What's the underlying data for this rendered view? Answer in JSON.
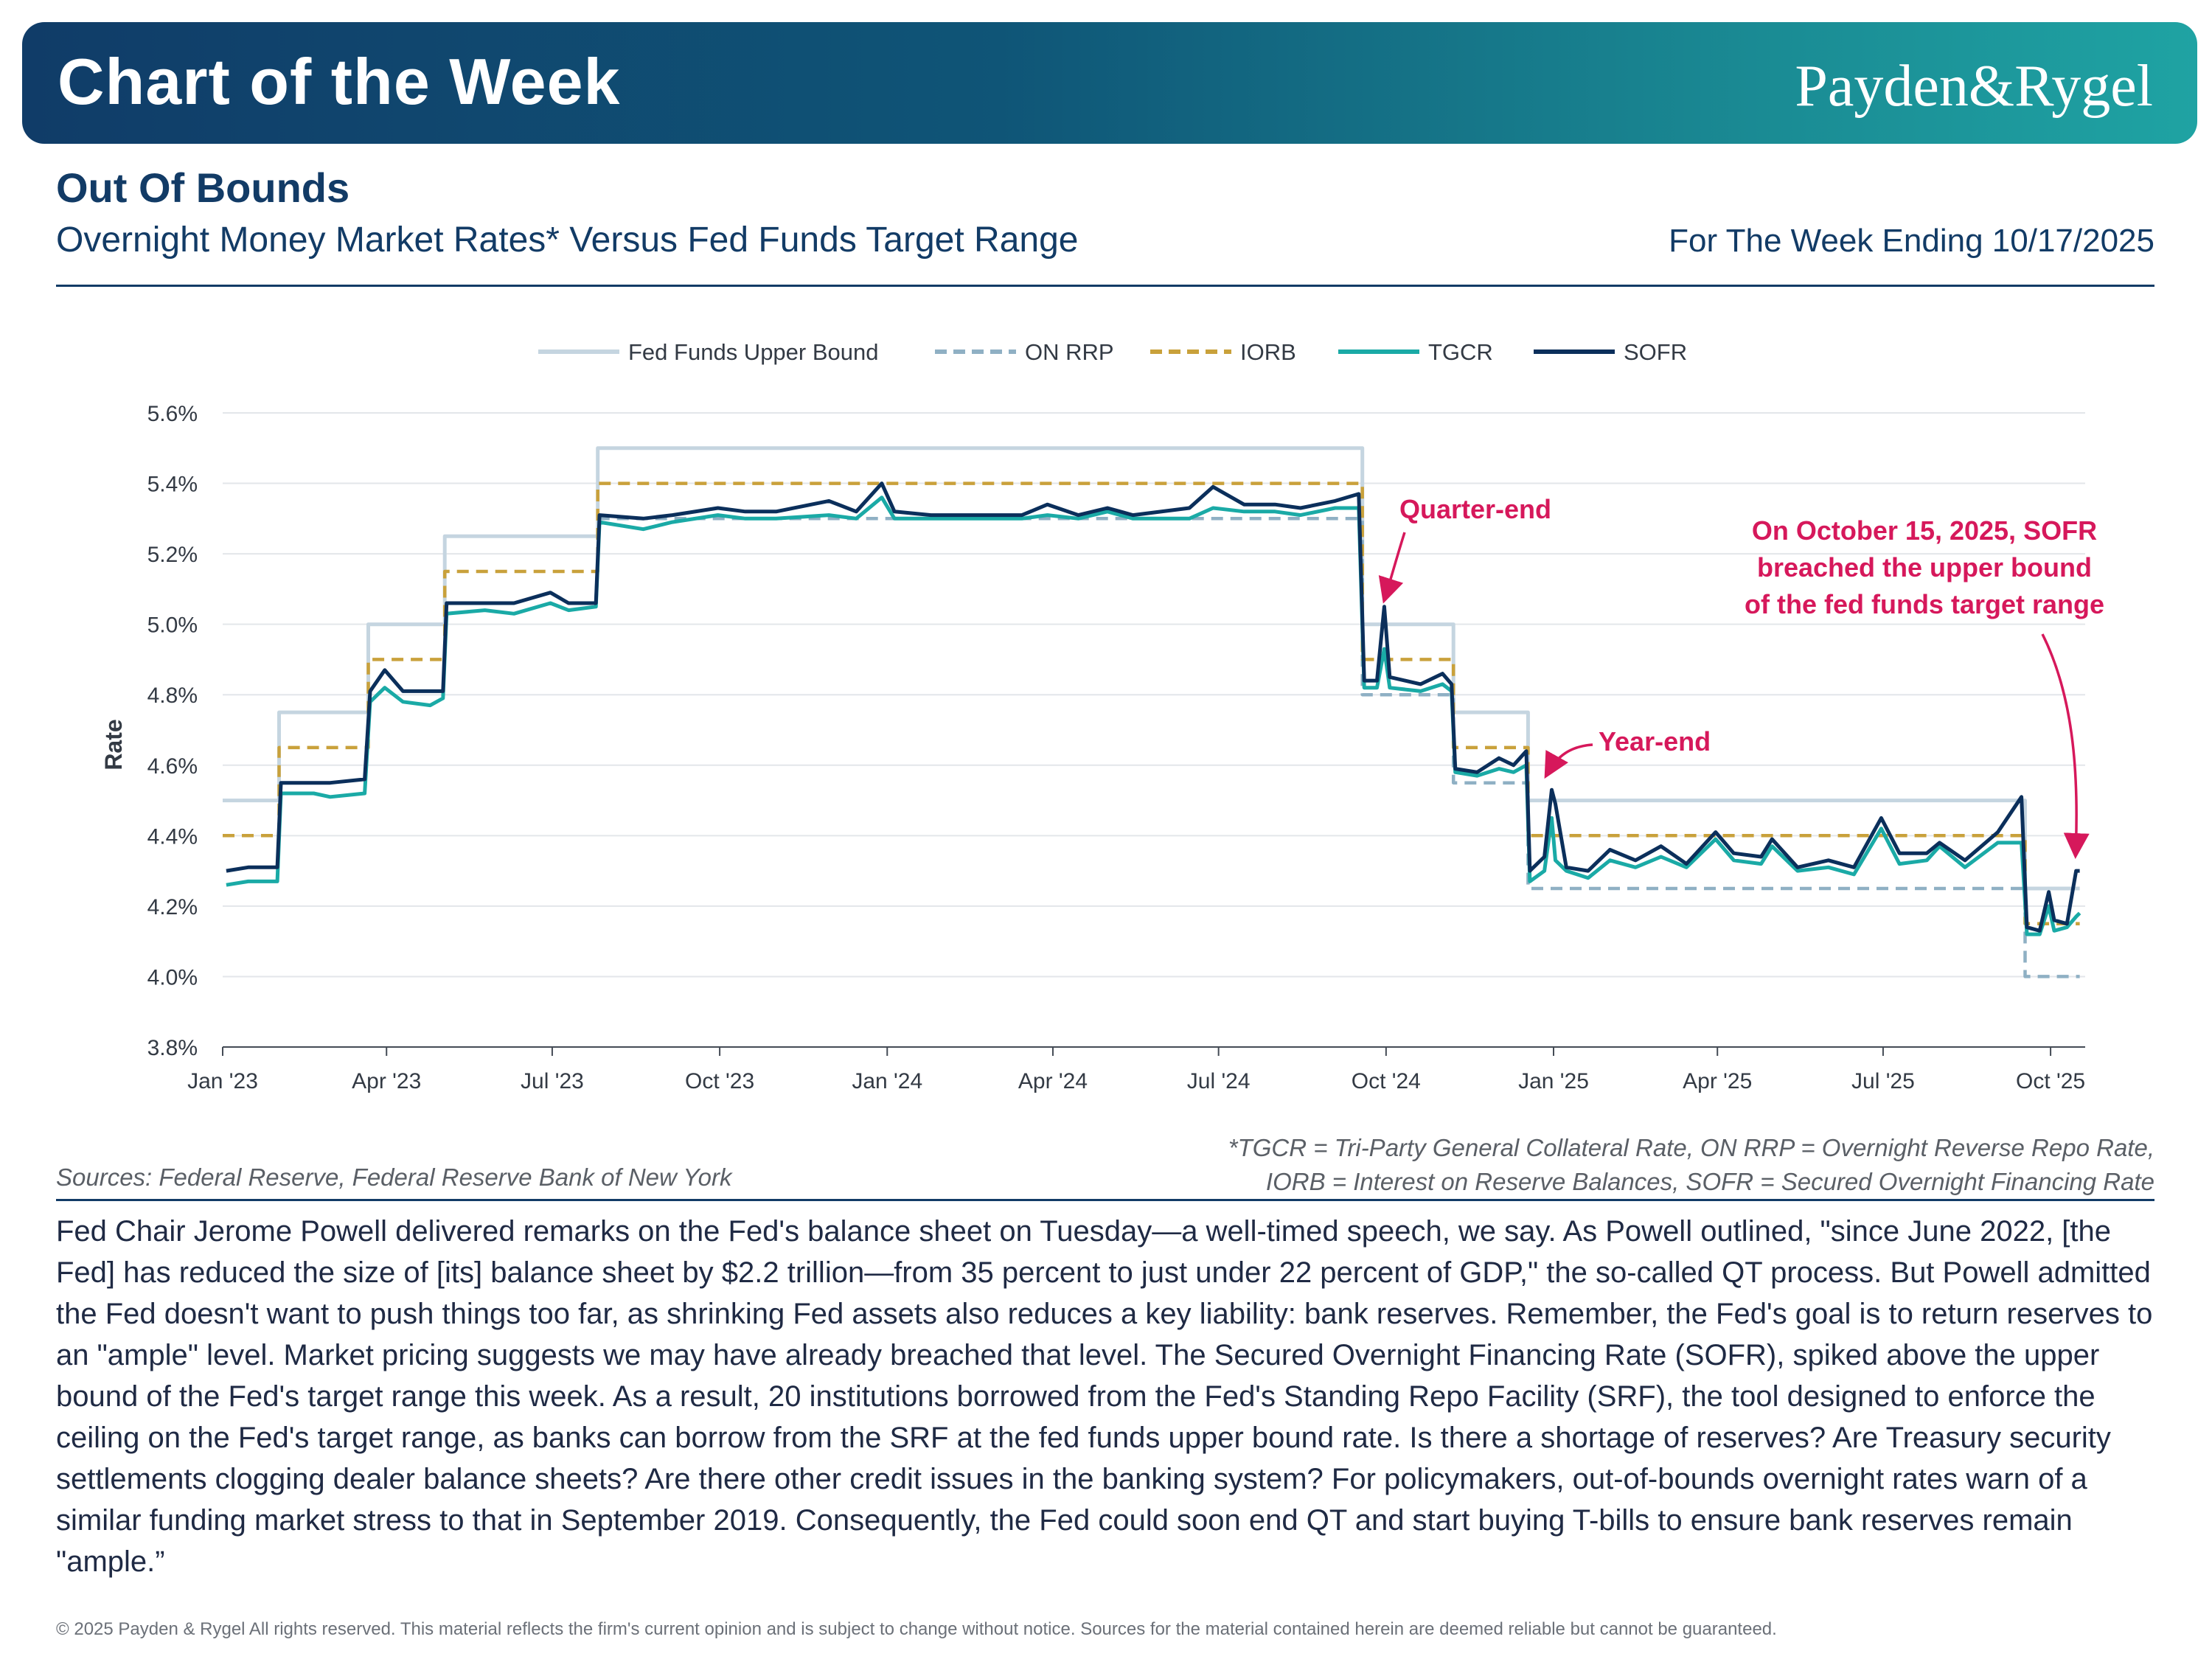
{
  "header": {
    "banner_title": "Chart of the Week",
    "logo_text": "Payden&Rygel",
    "headline": "Out Of Bounds",
    "subtitle": "Overnight Money Market Rates* Versus Fed Funds Target Range",
    "week_ending": "For The Week Ending 10/17/2025"
  },
  "notes": {
    "sources": "Sources: Federal Reserve, Federal Reserve Bank of New York",
    "definitions_line1": "*TGCR = Tri-Party General Collateral Rate, ON RRP = Overnight Reverse Repo Rate,",
    "definitions_line2": "IORB = Interest on Reserve Balances, SOFR = Secured Overnight Financing Rate"
  },
  "body_text": "Fed Chair Jerome Powell delivered remarks on the Fed's balance sheet on Tuesday—a well-timed speech, we say. As Powell outlined, \"since June 2022, [the Fed] has reduced the size of [its] balance sheet by $2.2 trillion—from 35 percent to just under 22 percent of GDP,\" the so-called QT process. But Powell admitted the Fed doesn't want to push things too far, as shrinking Fed assets also reduces a key liability: bank reserves. Remember, the Fed's goal is to return reserves to an \"ample\" level. Market pricing suggests we may have already breached that level. The Secured Overnight Financing Rate (SOFR), spiked above the upper bound of the Fed's target range this week. As a result, 20 institutions borrowed from the Fed's Standing Repo Facility (SRF), the tool designed to enforce the ceiling on the Fed's target range, as banks can borrow from the SRF at the fed funds upper bound rate. Is there a shortage of reserves? Are Treasury security settlements clogging dealer balance sheets? Are there other credit issues in the banking system? For policymakers, out-of-bounds overnight rates warn of a similar funding market stress to that in September 2019. Consequently, the Fed could soon end QT and start buying T-bills to ensure bank reserves remain \"ample.”",
  "copyright": "© 2025 Payden & Rygel All rights reserved. This material reflects the firm's current opinion and is subject to change without notice. Sources for the material contained herein are deemed reliable but cannot be guaranteed.",
  "chart_data": {
    "type": "line",
    "ylabel": "Rate",
    "ylim": [
      3.8,
      5.6
    ],
    "y_ticks": [
      3.8,
      4.0,
      4.2,
      4.4,
      4.6,
      4.8,
      5.0,
      5.2,
      5.4,
      5.6
    ],
    "y_tick_labels": [
      "3.8%",
      "4.0%",
      "4.2%",
      "4.4%",
      "4.6%",
      "4.8%",
      "5.0%",
      "5.2%",
      "5.4%",
      "5.6%"
    ],
    "xlim": [
      "2023-01-01",
      "2025-10-20"
    ],
    "x_ticks": [
      "2023-01-01",
      "2023-04-01",
      "2023-07-01",
      "2023-10-01",
      "2024-01-01",
      "2024-04-01",
      "2024-07-01",
      "2024-10-01",
      "2025-01-01",
      "2025-04-01",
      "2025-07-01",
      "2025-10-01"
    ],
    "x_tick_labels": [
      "Jan '23",
      "Apr '23",
      "Jul '23",
      "Oct '23",
      "Jan '24",
      "Apr '24",
      "Jul '24",
      "Oct '24",
      "Jan '25",
      "Apr '25",
      "Jul '25",
      "Oct '25"
    ],
    "grid": "horizontal",
    "legend_position": "top",
    "series": [
      {
        "name": "Fed Funds Upper Bound",
        "color": "#c5d5e0",
        "style": "solid",
        "points": [
          [
            "2023-01-01",
            4.5
          ],
          [
            "2023-02-01",
            4.5
          ],
          [
            "2023-02-01",
            4.75
          ],
          [
            "2023-03-22",
            4.75
          ],
          [
            "2023-03-22",
            5.0
          ],
          [
            "2023-05-03",
            5.0
          ],
          [
            "2023-05-03",
            5.25
          ],
          [
            "2023-07-26",
            5.25
          ],
          [
            "2023-07-26",
            5.5
          ],
          [
            "2024-09-18",
            5.5
          ],
          [
            "2024-09-18",
            5.0
          ],
          [
            "2024-11-07",
            5.0
          ],
          [
            "2024-11-07",
            4.75
          ],
          [
            "2024-12-18",
            4.75
          ],
          [
            "2024-12-18",
            4.5
          ],
          [
            "2025-09-17",
            4.5
          ],
          [
            "2025-09-17",
            4.25
          ],
          [
            "2025-10-17",
            4.25
          ]
        ]
      },
      {
        "name": "ON RRP",
        "color": "#8fb0c4",
        "style": "dashed",
        "points": [
          [
            "2023-07-26",
            5.3
          ],
          [
            "2024-09-18",
            5.3
          ],
          [
            "2024-09-18",
            4.8
          ],
          [
            "2024-11-07",
            4.8
          ],
          [
            "2024-11-07",
            4.55
          ],
          [
            "2024-12-18",
            4.55
          ],
          [
            "2024-12-18",
            4.25
          ],
          [
            "2025-09-17",
            4.25
          ],
          [
            "2025-09-17",
            4.0
          ],
          [
            "2025-10-17",
            4.0
          ]
        ]
      },
      {
        "name": "IORB",
        "color": "#c9a13b",
        "style": "dashed",
        "points": [
          [
            "2023-01-01",
            4.4
          ],
          [
            "2023-02-01",
            4.4
          ],
          [
            "2023-02-01",
            4.65
          ],
          [
            "2023-03-22",
            4.65
          ],
          [
            "2023-03-22",
            4.9
          ],
          [
            "2023-05-03",
            4.9
          ],
          [
            "2023-05-03",
            5.15
          ],
          [
            "2023-07-26",
            5.15
          ],
          [
            "2023-07-26",
            5.4
          ],
          [
            "2024-09-18",
            5.4
          ],
          [
            "2024-09-18",
            4.9
          ],
          [
            "2024-11-07",
            4.9
          ],
          [
            "2024-11-07",
            4.65
          ],
          [
            "2024-12-18",
            4.65
          ],
          [
            "2024-12-18",
            4.4
          ],
          [
            "2025-09-17",
            4.4
          ],
          [
            "2025-09-17",
            4.15
          ],
          [
            "2025-10-17",
            4.15
          ]
        ]
      },
      {
        "name": "TGCR",
        "color": "#1aaaa6",
        "style": "solid",
        "points": [
          [
            "2023-01-03",
            4.26
          ],
          [
            "2023-01-15",
            4.27
          ],
          [
            "2023-01-31",
            4.27
          ],
          [
            "2023-02-02",
            4.52
          ],
          [
            "2023-02-20",
            4.52
          ],
          [
            "2023-03-01",
            4.51
          ],
          [
            "2023-03-20",
            4.52
          ],
          [
            "2023-03-23",
            4.78
          ],
          [
            "2023-03-31",
            4.82
          ],
          [
            "2023-04-10",
            4.78
          ],
          [
            "2023-04-25",
            4.77
          ],
          [
            "2023-05-02",
            4.79
          ],
          [
            "2023-05-04",
            5.03
          ],
          [
            "2023-05-25",
            5.04
          ],
          [
            "2023-06-10",
            5.03
          ],
          [
            "2023-06-30",
            5.06
          ],
          [
            "2023-07-10",
            5.04
          ],
          [
            "2023-07-25",
            5.05
          ],
          [
            "2023-07-27",
            5.29
          ],
          [
            "2023-08-20",
            5.27
          ],
          [
            "2023-09-05",
            5.29
          ],
          [
            "2023-09-30",
            5.31
          ],
          [
            "2023-10-15",
            5.3
          ],
          [
            "2023-11-01",
            5.3
          ],
          [
            "2023-11-30",
            5.31
          ],
          [
            "2023-12-15",
            5.3
          ],
          [
            "2023-12-29",
            5.36
          ],
          [
            "2024-01-05",
            5.3
          ],
          [
            "2024-01-25",
            5.3
          ],
          [
            "2024-02-15",
            5.3
          ],
          [
            "2024-03-15",
            5.3
          ],
          [
            "2024-03-29",
            5.31
          ],
          [
            "2024-04-15",
            5.3
          ],
          [
            "2024-05-01",
            5.32
          ],
          [
            "2024-05-15",
            5.3
          ],
          [
            "2024-06-15",
            5.3
          ],
          [
            "2024-06-28",
            5.33
          ],
          [
            "2024-07-15",
            5.32
          ],
          [
            "2024-08-01",
            5.32
          ],
          [
            "2024-08-15",
            5.31
          ],
          [
            "2024-09-03",
            5.33
          ],
          [
            "2024-09-16",
            5.33
          ],
          [
            "2024-09-19",
            4.82
          ],
          [
            "2024-09-26",
            4.82
          ],
          [
            "2024-09-30",
            4.93
          ],
          [
            "2024-10-03",
            4.82
          ],
          [
            "2024-10-20",
            4.81
          ],
          [
            "2024-11-01",
            4.83
          ],
          [
            "2024-11-06",
            4.81
          ],
          [
            "2024-11-08",
            4.58
          ],
          [
            "2024-11-20",
            4.57
          ],
          [
            "2024-12-02",
            4.59
          ],
          [
            "2024-12-10",
            4.58
          ],
          [
            "2024-12-17",
            4.6
          ],
          [
            "2024-12-19",
            4.27
          ],
          [
            "2024-12-27",
            4.3
          ],
          [
            "2024-12-31",
            4.45
          ],
          [
            "2025-01-02",
            4.33
          ],
          [
            "2025-01-08",
            4.3
          ],
          [
            "2025-01-20",
            4.28
          ],
          [
            "2025-02-01",
            4.33
          ],
          [
            "2025-02-15",
            4.31
          ],
          [
            "2025-03-01",
            4.34
          ],
          [
            "2025-03-15",
            4.31
          ],
          [
            "2025-03-31",
            4.39
          ],
          [
            "2025-04-10",
            4.33
          ],
          [
            "2025-04-25",
            4.32
          ],
          [
            "2025-05-01",
            4.37
          ],
          [
            "2025-05-15",
            4.3
          ],
          [
            "2025-06-01",
            4.31
          ],
          [
            "2025-06-15",
            4.29
          ],
          [
            "2025-06-30",
            4.42
          ],
          [
            "2025-07-10",
            4.32
          ],
          [
            "2025-07-25",
            4.33
          ],
          [
            "2025-08-01",
            4.37
          ],
          [
            "2025-08-15",
            4.31
          ],
          [
            "2025-09-02",
            4.38
          ],
          [
            "2025-09-15",
            4.38
          ],
          [
            "2025-09-18",
            4.12
          ],
          [
            "2025-09-25",
            4.12
          ],
          [
            "2025-09-30",
            4.2
          ],
          [
            "2025-10-03",
            4.13
          ],
          [
            "2025-10-10",
            4.14
          ],
          [
            "2025-10-15",
            4.17
          ],
          [
            "2025-10-17",
            4.18
          ]
        ]
      },
      {
        "name": "SOFR",
        "color": "#0b2f5b",
        "style": "solid",
        "points": [
          [
            "2023-01-03",
            4.3
          ],
          [
            "2023-01-15",
            4.31
          ],
          [
            "2023-01-31",
            4.31
          ],
          [
            "2023-02-02",
            4.55
          ],
          [
            "2023-02-20",
            4.55
          ],
          [
            "2023-03-01",
            4.55
          ],
          [
            "2023-03-20",
            4.56
          ],
          [
            "2023-03-23",
            4.81
          ],
          [
            "2023-03-31",
            4.87
          ],
          [
            "2023-04-10",
            4.81
          ],
          [
            "2023-04-25",
            4.81
          ],
          [
            "2023-05-02",
            4.81
          ],
          [
            "2023-05-04",
            5.06
          ],
          [
            "2023-05-25",
            5.06
          ],
          [
            "2023-06-10",
            5.06
          ],
          [
            "2023-06-30",
            5.09
          ],
          [
            "2023-07-10",
            5.06
          ],
          [
            "2023-07-25",
            5.06
          ],
          [
            "2023-07-27",
            5.31
          ],
          [
            "2023-08-20",
            5.3
          ],
          [
            "2023-09-05",
            5.31
          ],
          [
            "2023-09-30",
            5.33
          ],
          [
            "2023-10-15",
            5.32
          ],
          [
            "2023-11-01",
            5.32
          ],
          [
            "2023-11-30",
            5.35
          ],
          [
            "2023-12-15",
            5.32
          ],
          [
            "2023-12-29",
            5.4
          ],
          [
            "2024-01-05",
            5.32
          ],
          [
            "2024-01-25",
            5.31
          ],
          [
            "2024-02-15",
            5.31
          ],
          [
            "2024-03-15",
            5.31
          ],
          [
            "2024-03-29",
            5.34
          ],
          [
            "2024-04-15",
            5.31
          ],
          [
            "2024-05-01",
            5.33
          ],
          [
            "2024-05-15",
            5.31
          ],
          [
            "2024-06-15",
            5.33
          ],
          [
            "2024-06-28",
            5.39
          ],
          [
            "2024-07-15",
            5.34
          ],
          [
            "2024-08-01",
            5.34
          ],
          [
            "2024-08-15",
            5.33
          ],
          [
            "2024-09-03",
            5.35
          ],
          [
            "2024-09-16",
            5.37
          ],
          [
            "2024-09-19",
            4.84
          ],
          [
            "2024-09-26",
            4.84
          ],
          [
            "2024-09-30",
            5.05
          ],
          [
            "2024-10-03",
            4.85
          ],
          [
            "2024-10-20",
            4.83
          ],
          [
            "2024-11-01",
            4.86
          ],
          [
            "2024-11-06",
            4.83
          ],
          [
            "2024-11-08",
            4.59
          ],
          [
            "2024-11-20",
            4.58
          ],
          [
            "2024-12-02",
            4.62
          ],
          [
            "2024-12-10",
            4.6
          ],
          [
            "2024-12-17",
            4.64
          ],
          [
            "2024-12-19",
            4.3
          ],
          [
            "2024-12-27",
            4.34
          ],
          [
            "2024-12-31",
            4.53
          ],
          [
            "2025-01-02",
            4.49
          ],
          [
            "2025-01-08",
            4.31
          ],
          [
            "2025-01-20",
            4.3
          ],
          [
            "2025-02-01",
            4.36
          ],
          [
            "2025-02-15",
            4.33
          ],
          [
            "2025-03-01",
            4.37
          ],
          [
            "2025-03-15",
            4.32
          ],
          [
            "2025-03-31",
            4.41
          ],
          [
            "2025-04-10",
            4.35
          ],
          [
            "2025-04-25",
            4.34
          ],
          [
            "2025-05-01",
            4.39
          ],
          [
            "2025-05-15",
            4.31
          ],
          [
            "2025-06-01",
            4.33
          ],
          [
            "2025-06-15",
            4.31
          ],
          [
            "2025-06-30",
            4.45
          ],
          [
            "2025-07-10",
            4.35
          ],
          [
            "2025-07-25",
            4.35
          ],
          [
            "2025-08-01",
            4.38
          ],
          [
            "2025-08-15",
            4.33
          ],
          [
            "2025-09-02",
            4.41
          ],
          [
            "2025-09-15",
            4.51
          ],
          [
            "2025-09-18",
            4.14
          ],
          [
            "2025-09-25",
            4.13
          ],
          [
            "2025-09-30",
            4.24
          ],
          [
            "2025-10-03",
            4.16
          ],
          [
            "2025-10-10",
            4.15
          ],
          [
            "2025-10-15",
            4.3
          ],
          [
            "2025-10-17",
            4.3
          ]
        ]
      }
    ],
    "annotations": [
      {
        "text": [
          "Quarter-end"
        ],
        "color": "#d6185b",
        "point": [
          "2024-09-30",
          5.06
        ]
      },
      {
        "text": [
          "Year-end"
        ],
        "color": "#d6185b",
        "point": [
          "2024-12-31",
          4.53
        ]
      },
      {
        "text": [
          "On October 15, 2025, SOFR",
          "breached the upper bound",
          "of the fed funds target range"
        ],
        "color": "#d6185b",
        "point": [
          "2025-10-15",
          4.31
        ]
      }
    ]
  }
}
